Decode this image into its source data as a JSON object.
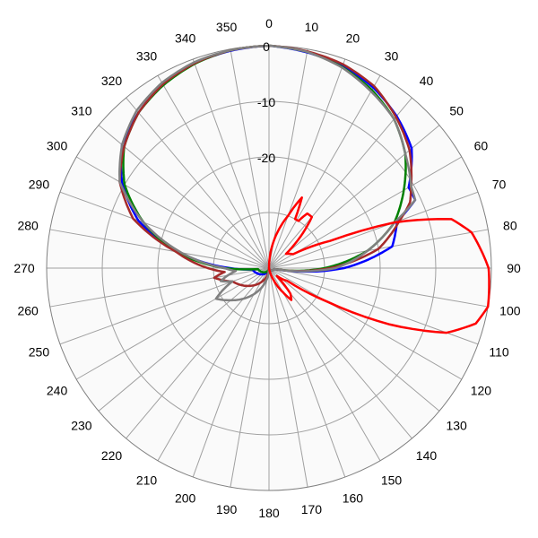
{
  "chart_data": {
    "type": "polar",
    "r_min": -40,
    "r_max": 0,
    "ring_values": [
      0,
      -10,
      -20,
      -30
    ],
    "ring_labels": [
      "0",
      "-10",
      "-20",
      ""
    ],
    "angle_step": 10,
    "angle_labels": [
      "0",
      "10",
      "20",
      "30",
      "40",
      "50",
      "60",
      "70",
      "80",
      "90",
      "100",
      "110",
      "120",
      "130",
      "140",
      "150",
      "160",
      "170",
      "180",
      "190",
      "200",
      "210",
      "220",
      "230",
      "240",
      "250",
      "260",
      "270",
      "280",
      "290",
      "300",
      "310",
      "320",
      "330",
      "340",
      "350"
    ],
    "grid": true,
    "plot_background": "#fafafa",
    "series": [
      {
        "color": "#0000ff",
        "points": [
          [
            0,
            0
          ],
          [
            10,
            -0.6
          ],
          [
            20,
            -1.3
          ],
          [
            30,
            -2.5
          ],
          [
            40,
            -4.3
          ],
          [
            50,
            -6.5
          ],
          [
            60,
            -11
          ],
          [
            65,
            -11
          ],
          [
            70,
            -15.5
          ],
          [
            80,
            -17.5
          ],
          [
            90,
            -26.5
          ],
          [
            100,
            -39
          ],
          [
            180,
            -40
          ],
          [
            265,
            -37
          ],
          [
            270,
            -33
          ],
          [
            280,
            -23.5
          ],
          [
            290,
            -15
          ],
          [
            300,
            -9.5
          ],
          [
            310,
            -5.5
          ],
          [
            320,
            -3.5
          ],
          [
            330,
            -1.8
          ],
          [
            340,
            -0.8
          ],
          [
            350,
            -0.3
          ],
          [
            360,
            0
          ]
        ]
      },
      {
        "color": "#008000",
        "points": [
          [
            0,
            0
          ],
          [
            10,
            -0.5
          ],
          [
            20,
            -1.5
          ],
          [
            30,
            -3
          ],
          [
            40,
            -5
          ],
          [
            50,
            -8
          ],
          [
            60,
            -12
          ],
          [
            70,
            -16
          ],
          [
            80,
            -22
          ],
          [
            90,
            -30
          ],
          [
            100,
            -39
          ],
          [
            180,
            -40
          ],
          [
            265,
            -38
          ],
          [
            270,
            -32
          ],
          [
            280,
            -23
          ],
          [
            290,
            -16
          ],
          [
            300,
            -10
          ],
          [
            310,
            -6
          ],
          [
            320,
            -3.5
          ],
          [
            330,
            -2
          ],
          [
            340,
            -0.9
          ],
          [
            350,
            -0.2
          ],
          [
            360,
            0
          ]
        ]
      },
      {
        "color": "#a52a2a",
        "points": [
          [
            0,
            0
          ],
          [
            10,
            -0.4
          ],
          [
            20,
            -1
          ],
          [
            30,
            -2.2
          ],
          [
            40,
            -4.5
          ],
          [
            50,
            -7
          ],
          [
            60,
            -10.5
          ],
          [
            65,
            -12
          ],
          [
            70,
            -15
          ],
          [
            80,
            -20
          ],
          [
            90,
            -29
          ],
          [
            100,
            -39
          ],
          [
            180,
            -40
          ],
          [
            250,
            -33
          ],
          [
            260,
            -30
          ],
          [
            265,
            -32
          ],
          [
            270,
            -29
          ],
          [
            280,
            -23
          ],
          [
            290,
            -14
          ],
          [
            300,
            -9
          ],
          [
            310,
            -6
          ],
          [
            320,
            -3.5
          ],
          [
            330,
            -1.8
          ],
          [
            340,
            -0.8
          ],
          [
            350,
            -0.2
          ],
          [
            360,
            0
          ]
        ]
      },
      {
        "color": "#808080",
        "points": [
          [
            0,
            0
          ],
          [
            10,
            -0.5
          ],
          [
            20,
            -1.6
          ],
          [
            30,
            -3.3
          ],
          [
            40,
            -5
          ],
          [
            50,
            -8
          ],
          [
            60,
            -10.5
          ],
          [
            65,
            -11
          ],
          [
            70,
            -16
          ],
          [
            80,
            -22
          ],
          [
            90,
            -28
          ],
          [
            100,
            -39
          ],
          [
            180,
            -40
          ],
          [
            230,
            -31
          ],
          [
            240,
            -29
          ],
          [
            250,
            -33
          ],
          [
            255,
            -31
          ],
          [
            265,
            -34
          ],
          [
            270,
            -32
          ],
          [
            280,
            -24
          ],
          [
            290,
            -16
          ],
          [
            300,
            -9
          ],
          [
            310,
            -5.5
          ],
          [
            320,
            -3
          ],
          [
            330,
            -1.5
          ],
          [
            340,
            -0.6
          ],
          [
            350,
            -0.2
          ],
          [
            360,
            0
          ]
        ]
      },
      {
        "color": "#ff0000",
        "points": [
          [
            0,
            -40
          ],
          [
            20,
            -30
          ],
          [
            25,
            -26
          ],
          [
            28,
            -30
          ],
          [
            32,
            -30
          ],
          [
            35,
            -28
          ],
          [
            40,
            -28
          ],
          [
            50,
            -36
          ],
          [
            60,
            -35
          ],
          [
            66,
            -28
          ],
          [
            70,
            -16
          ],
          [
            75,
            -6
          ],
          [
            80,
            -3
          ],
          [
            90,
            -0.5
          ],
          [
            100,
            0
          ],
          [
            105,
            -1.5
          ],
          [
            110,
            -6
          ],
          [
            115,
            -16
          ],
          [
            120,
            -28
          ],
          [
            125,
            -36
          ],
          [
            135,
            -38
          ],
          [
            140,
            -34
          ],
          [
            145,
            -33
          ],
          [
            150,
            -35
          ],
          [
            160,
            -38
          ],
          [
            170,
            -40
          ],
          [
            360,
            -40
          ]
        ]
      }
    ]
  }
}
